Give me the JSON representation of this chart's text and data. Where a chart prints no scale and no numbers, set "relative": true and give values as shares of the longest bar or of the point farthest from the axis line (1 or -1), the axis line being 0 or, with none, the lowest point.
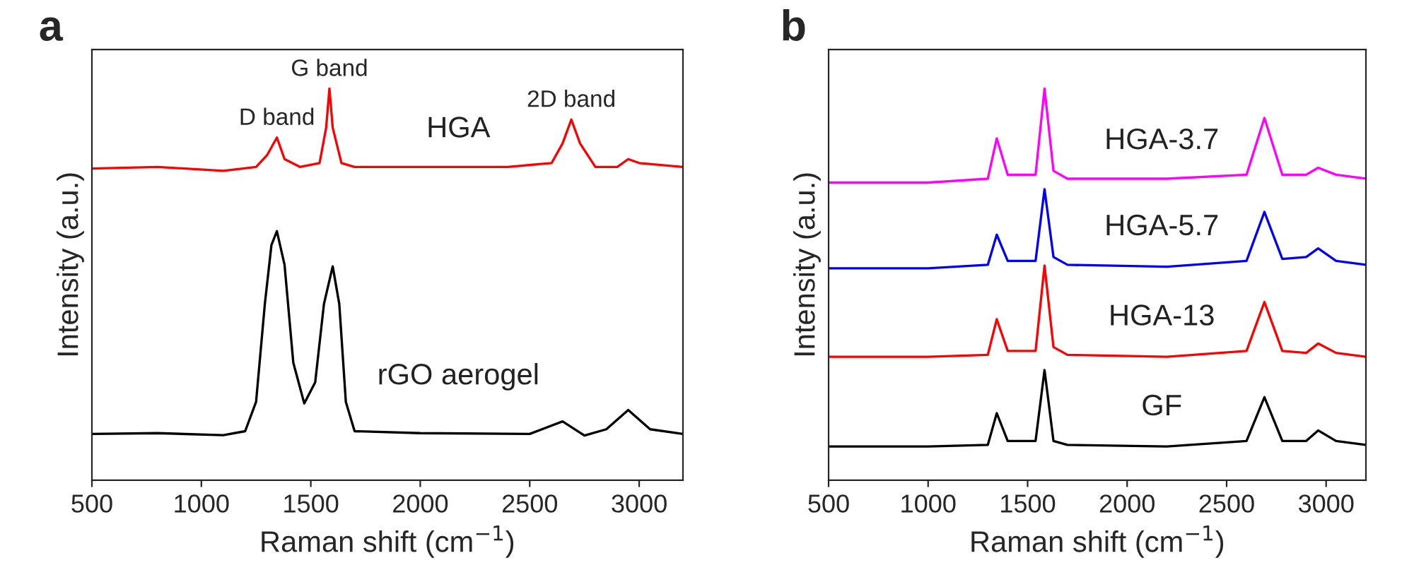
{
  "chart_data": [
    {
      "type": "line",
      "title": "a",
      "xlabel": "Raman shift (cm$^{−1}$)",
      "ylabel": "Intensity (a.u.)",
      "relative": true,
      "xlim": [
        500,
        3200
      ],
      "xticks": [
        500,
        1000,
        1500,
        2000,
        2500,
        3000
      ],
      "legend": false,
      "grid": false,
      "series": [
        {
          "name": "HGA",
          "color": "#ff0000",
          "x": [
            500,
            800,
            1100,
            1250,
            1300,
            1345,
            1380,
            1450,
            1540,
            1570,
            1585,
            1600,
            1640,
            1700,
            2000,
            2400,
            2600,
            2650,
            2690,
            2730,
            2800,
            2900,
            2950,
            3000,
            3200
          ],
          "values": [
            0.796,
            0.8,
            0.79,
            0.8,
            0.83,
            0.875,
            0.82,
            0.8,
            0.81,
            0.9,
            1.0,
            0.9,
            0.81,
            0.8,
            0.8,
            0.8,
            0.81,
            0.86,
            0.921,
            0.86,
            0.8,
            0.8,
            0.82,
            0.81,
            0.8
          ]
        },
        {
          "name": "rGO aerogel",
          "color": "#000000",
          "x": [
            500,
            800,
            1100,
            1200,
            1250,
            1290,
            1320,
            1345,
            1380,
            1420,
            1470,
            1520,
            1560,
            1600,
            1630,
            1660,
            1700,
            2000,
            2500,
            2650,
            2750,
            2850,
            2950,
            3050,
            3200
          ],
          "values": [
            0.118,
            0.12,
            0.115,
            0.125,
            0.2,
            0.45,
            0.6,
            0.636,
            0.55,
            0.3,
            0.196,
            0.25,
            0.45,
            0.546,
            0.45,
            0.2,
            0.125,
            0.12,
            0.118,
            0.15,
            0.114,
            0.13,
            0.179,
            0.13,
            0.118
          ]
        }
      ],
      "annotations": [
        {
          "text": "D band",
          "x": 1345,
          "y": 0.875
        },
        {
          "text": "G band",
          "x": 1585,
          "y": 1.0
        },
        {
          "text": "2D band",
          "x": 2690,
          "y": 0.921
        }
      ]
    },
    {
      "type": "line",
      "title": "b",
      "xlabel": "Raman shift (cm$^{−1}$)",
      "ylabel": "Intensity (a.u.)",
      "relative": true,
      "xlim": [
        500,
        3200
      ],
      "xticks": [
        500,
        1000,
        1500,
        2000,
        2500,
        3000
      ],
      "legend": false,
      "grid": false,
      "series": [
        {
          "name": "GF",
          "color": "#000000",
          "x": [
            500,
            1000,
            1300,
            1345,
            1400,
            1540,
            1585,
            1630,
            1700,
            2200,
            2600,
            2690,
            2780,
            2900,
            2960,
            3050,
            3200
          ],
          "values": [
            0.086,
            0.086,
            0.09,
            0.171,
            0.1,
            0.1,
            0.281,
            0.1,
            0.09,
            0.086,
            0.1,
            0.212,
            0.1,
            0.1,
            0.127,
            0.1,
            0.09
          ]
        },
        {
          "name": "HGA-13",
          "color": "#ff0000",
          "x": [
            500,
            1000,
            1300,
            1345,
            1400,
            1540,
            1585,
            1630,
            1700,
            2200,
            2600,
            2690,
            2780,
            2900,
            2960,
            3050,
            3200
          ],
          "values": [
            0.315,
            0.315,
            0.32,
            0.411,
            0.33,
            0.33,
            0.548,
            0.34,
            0.32,
            0.315,
            0.33,
            0.455,
            0.33,
            0.325,
            0.349,
            0.325,
            0.315
          ]
        },
        {
          "name": "HGA-5.7",
          "color": "#0000ff",
          "x": [
            500,
            1000,
            1300,
            1345,
            1400,
            1540,
            1585,
            1630,
            1700,
            2200,
            2600,
            2690,
            2780,
            2900,
            2960,
            3050,
            3200
          ],
          "values": [
            0.541,
            0.541,
            0.55,
            0.627,
            0.56,
            0.56,
            0.743,
            0.57,
            0.55,
            0.545,
            0.56,
            0.685,
            0.565,
            0.57,
            0.592,
            0.56,
            0.55
          ]
        },
        {
          "name": "HGA-3.7",
          "color": "#ff00ff",
          "x": [
            500,
            1000,
            1300,
            1345,
            1400,
            1540,
            1585,
            1630,
            1700,
            2200,
            2600,
            2690,
            2780,
            2900,
            2960,
            3050,
            3200
          ],
          "values": [
            0.76,
            0.76,
            0.77,
            0.873,
            0.78,
            0.78,
            1.0,
            0.79,
            0.77,
            0.77,
            0.78,
            0.925,
            0.78,
            0.78,
            0.798,
            0.78,
            0.77
          ]
        }
      ]
    }
  ]
}
